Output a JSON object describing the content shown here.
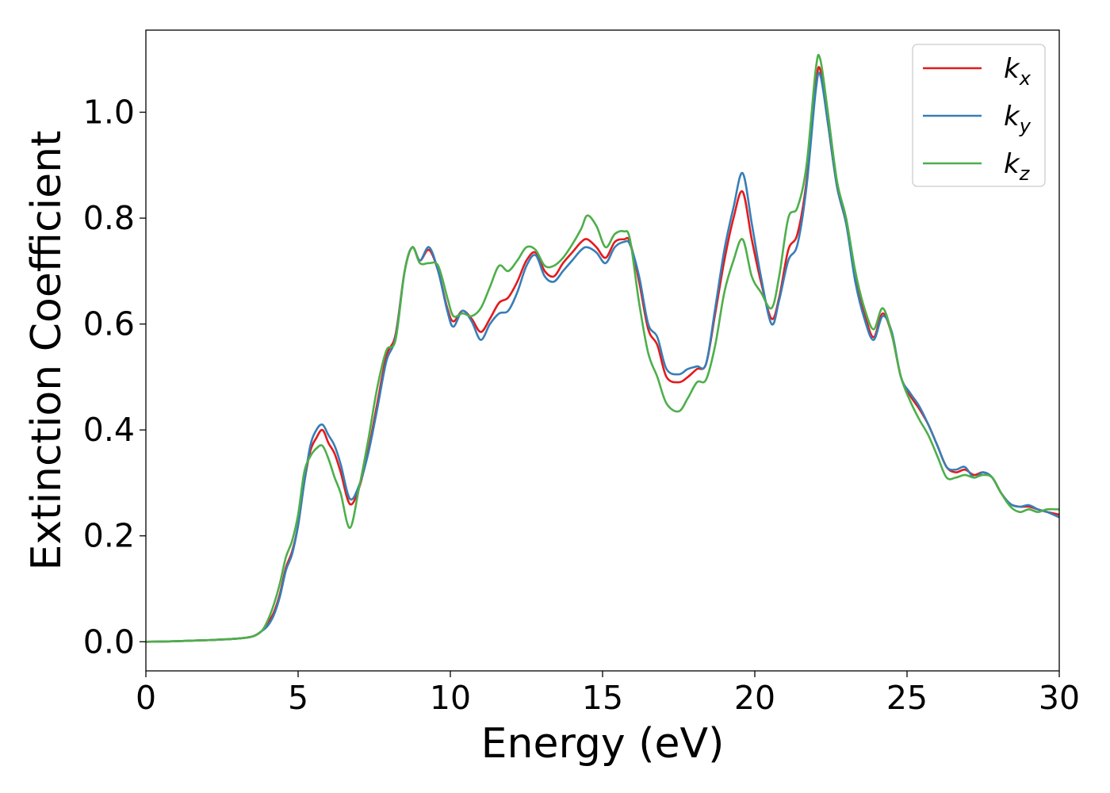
{
  "chart_data": {
    "type": "line",
    "title": "",
    "xlabel": "Energy (eV)",
    "ylabel": "Extinction Coefficient",
    "xlim": [
      0,
      30
    ],
    "ylim": [
      -0.055,
      1.155
    ],
    "xticks": [
      0,
      5,
      10,
      15,
      20,
      25,
      30
    ],
    "yticks": [
      0.0,
      0.2,
      0.4,
      0.6,
      0.8,
      1.0
    ],
    "xtick_labels": [
      "0",
      "5",
      "10",
      "15",
      "20",
      "25",
      "30"
    ],
    "ytick_labels": [
      "0.0",
      "0.2",
      "0.4",
      "0.6",
      "0.8",
      "1.0"
    ],
    "grid": false,
    "legend_position": "top-right",
    "series": [
      {
        "name": "k_x",
        "label_main": "k",
        "label_sub": "x",
        "color": "#e41a1c",
        "x": [
          0,
          1,
          2,
          3,
          3.5,
          3.8,
          4.0,
          4.2,
          4.4,
          4.6,
          4.8,
          5.0,
          5.2,
          5.4,
          5.6,
          5.8,
          6.0,
          6.2,
          6.4,
          6.7,
          7.0,
          7.3,
          7.6,
          7.9,
          8.2,
          8.5,
          8.75,
          9.0,
          9.3,
          9.6,
          9.9,
          10.1,
          10.4,
          10.7,
          11.0,
          11.3,
          11.6,
          11.9,
          12.2,
          12.5,
          12.8,
          13.1,
          13.4,
          13.7,
          14.0,
          14.3,
          14.5,
          14.8,
          15.1,
          15.4,
          15.7,
          15.9,
          16.2,
          16.5,
          16.8,
          17.1,
          17.5,
          17.8,
          18.1,
          18.4,
          18.7,
          19.0,
          19.3,
          19.6,
          19.9,
          20.2,
          20.55,
          20.8,
          21.1,
          21.4,
          21.7,
          22.0,
          22.15,
          22.4,
          22.7,
          23.0,
          23.3,
          23.6,
          23.9,
          24.2,
          24.5,
          24.8,
          25.1,
          25.4,
          25.7,
          26.0,
          26.3,
          26.6,
          26.9,
          27.2,
          27.5,
          27.8,
          28.1,
          28.4,
          28.7,
          29.0,
          29.3,
          29.6,
          30.0
        ],
        "y": [
          0.0,
          0.001,
          0.003,
          0.006,
          0.01,
          0.02,
          0.035,
          0.055,
          0.09,
          0.14,
          0.17,
          0.22,
          0.3,
          0.36,
          0.385,
          0.4,
          0.375,
          0.355,
          0.32,
          0.26,
          0.29,
          0.36,
          0.45,
          0.54,
          0.58,
          0.7,
          0.745,
          0.72,
          0.74,
          0.7,
          0.63,
          0.605,
          0.625,
          0.61,
          0.585,
          0.61,
          0.64,
          0.65,
          0.68,
          0.72,
          0.735,
          0.7,
          0.69,
          0.715,
          0.735,
          0.755,
          0.76,
          0.745,
          0.725,
          0.755,
          0.76,
          0.755,
          0.68,
          0.59,
          0.56,
          0.5,
          0.49,
          0.5,
          0.515,
          0.525,
          0.62,
          0.72,
          0.8,
          0.85,
          0.76,
          0.68,
          0.61,
          0.65,
          0.74,
          0.77,
          0.87,
          1.05,
          1.08,
          0.98,
          0.86,
          0.79,
          0.69,
          0.62,
          0.575,
          0.62,
          0.58,
          0.5,
          0.465,
          0.44,
          0.41,
          0.37,
          0.33,
          0.32,
          0.325,
          0.315,
          0.32,
          0.31,
          0.28,
          0.26,
          0.255,
          0.255,
          0.25,
          0.245,
          0.24
        ]
      },
      {
        "name": "k_y",
        "label_main": "k",
        "label_sub": "y",
        "color": "#377eb8",
        "x": [
          0,
          1,
          2,
          3,
          3.5,
          3.8,
          4.0,
          4.2,
          4.4,
          4.6,
          4.8,
          5.0,
          5.2,
          5.4,
          5.6,
          5.8,
          6.0,
          6.2,
          6.4,
          6.7,
          7.0,
          7.3,
          7.6,
          7.9,
          8.2,
          8.5,
          8.75,
          9.0,
          9.3,
          9.6,
          9.9,
          10.1,
          10.4,
          10.7,
          11.0,
          11.3,
          11.6,
          11.9,
          12.2,
          12.5,
          12.8,
          13.1,
          13.4,
          13.7,
          14.0,
          14.3,
          14.5,
          14.8,
          15.1,
          15.4,
          15.7,
          15.9,
          16.2,
          16.5,
          16.8,
          17.1,
          17.5,
          17.8,
          18.1,
          18.4,
          18.7,
          19.0,
          19.3,
          19.6,
          19.9,
          20.2,
          20.55,
          20.8,
          21.1,
          21.4,
          21.7,
          22.0,
          22.15,
          22.4,
          22.7,
          23.0,
          23.3,
          23.6,
          23.9,
          24.2,
          24.5,
          24.8,
          25.1,
          25.4,
          25.7,
          26.0,
          26.3,
          26.6,
          26.9,
          27.2,
          27.5,
          27.8,
          28.1,
          28.4,
          28.7,
          29.0,
          29.3,
          29.6,
          30.0
        ],
        "y": [
          0.0,
          0.001,
          0.003,
          0.006,
          0.01,
          0.02,
          0.03,
          0.05,
          0.085,
          0.135,
          0.165,
          0.22,
          0.3,
          0.37,
          0.4,
          0.41,
          0.39,
          0.37,
          0.335,
          0.27,
          0.295,
          0.355,
          0.44,
          0.53,
          0.575,
          0.7,
          0.745,
          0.72,
          0.745,
          0.7,
          0.625,
          0.595,
          0.625,
          0.605,
          0.57,
          0.6,
          0.62,
          0.625,
          0.66,
          0.71,
          0.73,
          0.69,
          0.68,
          0.7,
          0.72,
          0.74,
          0.745,
          0.735,
          0.715,
          0.745,
          0.755,
          0.75,
          0.69,
          0.6,
          0.575,
          0.515,
          0.505,
          0.515,
          0.52,
          0.525,
          0.63,
          0.74,
          0.82,
          0.885,
          0.79,
          0.69,
          0.6,
          0.645,
          0.72,
          0.75,
          0.86,
          1.04,
          1.07,
          0.98,
          0.86,
          0.79,
          0.68,
          0.61,
          0.57,
          0.615,
          0.585,
          0.5,
          0.47,
          0.445,
          0.41,
          0.37,
          0.33,
          0.325,
          0.33,
          0.31,
          0.32,
          0.31,
          0.28,
          0.26,
          0.255,
          0.258,
          0.25,
          0.245,
          0.235
        ]
      },
      {
        "name": "k_z",
        "label_main": "k",
        "label_sub": "z",
        "color": "#4daf4a",
        "x": [
          0,
          1,
          2,
          3,
          3.5,
          3.8,
          4.0,
          4.2,
          4.4,
          4.6,
          4.8,
          5.0,
          5.2,
          5.4,
          5.6,
          5.8,
          6.0,
          6.2,
          6.4,
          6.7,
          7.0,
          7.3,
          7.6,
          7.9,
          8.2,
          8.5,
          8.75,
          9.0,
          9.3,
          9.6,
          9.9,
          10.1,
          10.4,
          10.7,
          11.0,
          11.3,
          11.6,
          11.9,
          12.2,
          12.5,
          12.8,
          13.1,
          13.4,
          13.7,
          14.0,
          14.3,
          14.5,
          14.8,
          15.1,
          15.4,
          15.7,
          15.9,
          16.2,
          16.5,
          16.8,
          17.1,
          17.5,
          17.8,
          18.1,
          18.4,
          18.7,
          19.0,
          19.3,
          19.6,
          19.9,
          20.2,
          20.55,
          20.8,
          21.1,
          21.4,
          21.7,
          22.0,
          22.15,
          22.4,
          22.7,
          23.0,
          23.3,
          23.6,
          23.9,
          24.2,
          24.5,
          24.8,
          25.1,
          25.4,
          25.7,
          26.0,
          26.3,
          26.6,
          26.9,
          27.2,
          27.5,
          27.8,
          28.1,
          28.4,
          28.7,
          29.0,
          29.3,
          29.6,
          30.0
        ],
        "y": [
          0.0,
          0.001,
          0.003,
          0.006,
          0.01,
          0.02,
          0.04,
          0.07,
          0.11,
          0.16,
          0.19,
          0.24,
          0.32,
          0.35,
          0.365,
          0.37,
          0.345,
          0.31,
          0.28,
          0.215,
          0.29,
          0.38,
          0.48,
          0.55,
          0.57,
          0.7,
          0.745,
          0.715,
          0.715,
          0.71,
          0.65,
          0.615,
          0.62,
          0.615,
          0.63,
          0.67,
          0.71,
          0.7,
          0.72,
          0.745,
          0.74,
          0.71,
          0.71,
          0.725,
          0.75,
          0.78,
          0.805,
          0.785,
          0.745,
          0.77,
          0.775,
          0.76,
          0.64,
          0.545,
          0.5,
          0.45,
          0.435,
          0.46,
          0.49,
          0.495,
          0.56,
          0.66,
          0.72,
          0.76,
          0.69,
          0.66,
          0.63,
          0.69,
          0.8,
          0.82,
          0.9,
          1.08,
          1.1,
          1.0,
          0.87,
          0.8,
          0.7,
          0.63,
          0.59,
          0.63,
          0.58,
          0.5,
          0.455,
          0.42,
          0.39,
          0.35,
          0.31,
          0.31,
          0.315,
          0.31,
          0.315,
          0.31,
          0.28,
          0.255,
          0.245,
          0.25,
          0.245,
          0.25,
          0.25
        ]
      }
    ]
  }
}
